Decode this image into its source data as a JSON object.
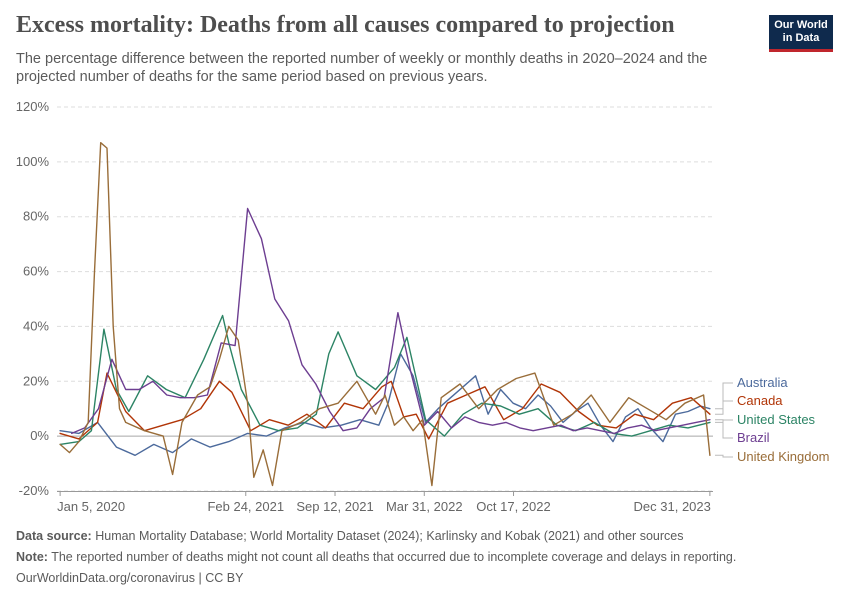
{
  "header": {
    "title": "Excess mortality: Deaths from all causes compared to projection",
    "subtitle": "The percentage difference between the reported number of weekly or monthly deaths in 2020–2024 and the projected number of deaths for the same period based on previous years.",
    "logo_line1": "Our World",
    "logo_line2": "in Data"
  },
  "footer": {
    "source_label": "Data source:",
    "source_text": "Human Mortality Database; World Mortality Dataset (2024); Karlinsky and Kobak (2021) and other sources",
    "note_label": "Note:",
    "note_text": "The reported number of deaths might not count all deaths that occurred due to incomplete coverage and delays in reporting.",
    "credit": "OurWorldinData.org/coronavirus | CC BY"
  },
  "colors": {
    "Australia": "#4c6a9c",
    "Canada": "#b13507",
    "United States": "#2c8465",
    "Brazil": "#6d3e91",
    "United Kingdom": "#996d39"
  },
  "chart_data": {
    "type": "line",
    "title": "Excess mortality: Deaths from all causes compared to projection",
    "ylabel": "",
    "xlabel": "",
    "ylim": [
      -20,
      120
    ],
    "yticks": [
      -20,
      0,
      20,
      40,
      60,
      80,
      100,
      120
    ],
    "ytick_labels": [
      "-20%",
      "0%",
      "20%",
      "40%",
      "60%",
      "80%",
      "100%",
      "120%"
    ],
    "xlim": [
      "2019-12-29",
      "2024-01-07"
    ],
    "xticks": [
      "2020-01-05",
      "2021-02-24",
      "2021-09-12",
      "2022-03-31",
      "2022-10-17",
      "2023-12-31"
    ],
    "xtick_labels": [
      "Jan 5, 2020",
      "Feb 24, 2021",
      "Sep 12, 2021",
      "Mar 31, 2022",
      "Oct 17, 2022",
      "Dec 31, 2023"
    ],
    "grid": "horizontal dashed",
    "legend": "right, at line ends",
    "series": [
      {
        "name": "Australia",
        "x": [
          "2020-01-05",
          "2020-02-16",
          "2020-03-29",
          "2020-05-10",
          "2020-06-21",
          "2020-08-02",
          "2020-09-13",
          "2020-10-25",
          "2020-12-06",
          "2021-01-17",
          "2021-02-28",
          "2021-04-11",
          "2021-05-23",
          "2021-07-04",
          "2021-08-15",
          "2021-09-26",
          "2021-11-07",
          "2021-12-19",
          "2022-01-09",
          "2022-02-06",
          "2022-03-06",
          "2022-04-03",
          "2022-05-01",
          "2022-05-29",
          "2022-06-26",
          "2022-07-24",
          "2022-08-21",
          "2022-09-18",
          "2022-10-16",
          "2022-11-13",
          "2022-12-11",
          "2023-01-08",
          "2023-02-05",
          "2023-03-05",
          "2023-04-02",
          "2023-04-30",
          "2023-05-28",
          "2023-06-25",
          "2023-07-23",
          "2023-08-20",
          "2023-09-17",
          "2023-10-15",
          "2023-11-12",
          "2023-12-10",
          "2023-12-31"
        ],
        "values": [
          2,
          1,
          5,
          -4,
          -7,
          -3,
          -6,
          -1,
          -4,
          -2,
          1,
          0,
          3,
          5,
          3,
          4,
          6,
          4,
          12,
          30,
          22,
          5,
          10,
          14,
          18,
          22,
          8,
          17,
          12,
          10,
          15,
          11,
          5,
          9,
          12,
          4,
          -2,
          7,
          10,
          3,
          -2,
          8,
          9,
          11,
          10
        ]
      },
      {
        "name": "Canada",
        "x": [
          "2020-01-05",
          "2020-02-16",
          "2020-03-29",
          "2020-04-19",
          "2020-05-31",
          "2020-07-12",
          "2020-08-23",
          "2020-10-04",
          "2020-11-15",
          "2020-12-27",
          "2021-01-24",
          "2021-03-07",
          "2021-04-18",
          "2021-05-30",
          "2021-07-11",
          "2021-08-22",
          "2021-10-03",
          "2021-11-14",
          "2021-12-26",
          "2022-01-16",
          "2022-02-13",
          "2022-03-13",
          "2022-04-10",
          "2022-05-22",
          "2022-07-03",
          "2022-08-14",
          "2022-09-25",
          "2022-11-06",
          "2022-12-18",
          "2023-01-29",
          "2023-03-12",
          "2023-04-23",
          "2023-06-04",
          "2023-07-16",
          "2023-08-27",
          "2023-10-08",
          "2023-11-19",
          "2023-12-31"
        ],
        "values": [
          1,
          -1,
          5,
          23,
          9,
          2,
          4,
          6,
          10,
          20,
          16,
          2,
          6,
          4,
          8,
          3,
          12,
          10,
          18,
          20,
          7,
          8,
          -1,
          12,
          15,
          18,
          6,
          10,
          19,
          16,
          9,
          4,
          3,
          8,
          6,
          12,
          14,
          8
        ]
      },
      {
        "name": "United States",
        "x": [
          "2020-01-05",
          "2020-02-16",
          "2020-03-15",
          "2020-04-12",
          "2020-05-10",
          "2020-06-07",
          "2020-07-19",
          "2020-08-30",
          "2020-10-11",
          "2020-11-22",
          "2021-01-03",
          "2021-01-17",
          "2021-02-14",
          "2021-03-28",
          "2021-05-09",
          "2021-06-20",
          "2021-08-01",
          "2021-08-29",
          "2021-09-19",
          "2021-10-31",
          "2021-12-12",
          "2022-01-23",
          "2022-02-20",
          "2022-04-03",
          "2022-05-15",
          "2022-06-26",
          "2022-08-07",
          "2022-09-18",
          "2022-10-30",
          "2022-12-11",
          "2023-01-22",
          "2023-03-05",
          "2023-04-16",
          "2023-05-28",
          "2023-07-09",
          "2023-08-20",
          "2023-10-01",
          "2023-11-12",
          "2023-12-31"
        ],
        "values": [
          -3,
          -2,
          2,
          39,
          17,
          9,
          22,
          17,
          14,
          28,
          44,
          34,
          17,
          4,
          2,
          3,
          8,
          30,
          38,
          22,
          17,
          25,
          36,
          6,
          0,
          8,
          12,
          11,
          8,
          10,
          4,
          2,
          5,
          1,
          0,
          2,
          4,
          3,
          5
        ]
      },
      {
        "name": "Brazil",
        "x": [
          "2020-01-31",
          "2020-02-29",
          "2020-03-31",
          "2020-04-30",
          "2020-05-31",
          "2020-06-30",
          "2020-07-31",
          "2020-08-31",
          "2020-09-30",
          "2020-10-31",
          "2020-11-30",
          "2020-12-31",
          "2021-01-31",
          "2021-02-28",
          "2021-03-31",
          "2021-04-30",
          "2021-05-31",
          "2021-06-30",
          "2021-07-31",
          "2021-08-31",
          "2021-09-30",
          "2021-10-31",
          "2021-11-30",
          "2021-12-31",
          "2022-01-31",
          "2022-02-28",
          "2022-03-31",
          "2022-04-30",
          "2022-05-31",
          "2022-06-30",
          "2022-07-31",
          "2022-08-31",
          "2022-09-30",
          "2022-10-31",
          "2022-11-30",
          "2022-12-31",
          "2023-01-31",
          "2023-02-28",
          "2023-03-31",
          "2023-04-30",
          "2023-05-31",
          "2023-06-30",
          "2023-07-31",
          "2023-08-31",
          "2023-09-30",
          "2023-10-31",
          "2023-11-30",
          "2023-12-31"
        ],
        "values": [
          1,
          3,
          10,
          28,
          17,
          17,
          20,
          15,
          14,
          14,
          15,
          34,
          33,
          83,
          72,
          50,
          42,
          26,
          19,
          9,
          2,
          3,
          10,
          14,
          45,
          24,
          4,
          9,
          3,
          7,
          5,
          4,
          5,
          3,
          2,
          3,
          4,
          2,
          3,
          2,
          1,
          3,
          4,
          2,
          3,
          4,
          5,
          6
        ]
      },
      {
        "name": "United Kingdom",
        "x": [
          "2020-01-05",
          "2020-01-26",
          "2020-02-16",
          "2020-03-08",
          "2020-03-22",
          "2020-04-05",
          "2020-04-19",
          "2020-05-03",
          "2020-05-17",
          "2020-05-31",
          "2020-07-12",
          "2020-08-23",
          "2020-09-13",
          "2020-10-04",
          "2020-11-08",
          "2020-12-06",
          "2020-12-27",
          "2021-01-17",
          "2021-02-07",
          "2021-02-28",
          "2021-03-14",
          "2021-04-04",
          "2021-04-25",
          "2021-05-16",
          "2021-06-27",
          "2021-08-08",
          "2021-09-19",
          "2021-10-31",
          "2021-12-12",
          "2022-01-02",
          "2022-01-23",
          "2022-02-13",
          "2022-03-06",
          "2022-03-27",
          "2022-04-17",
          "2022-05-08",
          "2022-06-19",
          "2022-07-31",
          "2022-09-11",
          "2022-10-23",
          "2022-12-04",
          "2023-01-15",
          "2023-02-26",
          "2023-04-09",
          "2023-05-21",
          "2023-07-02",
          "2023-08-13",
          "2023-09-24",
          "2023-11-05",
          "2023-12-17",
          "2023-12-31"
        ],
        "values": [
          -3,
          -6,
          -2,
          5,
          60,
          107,
          105,
          40,
          10,
          5,
          2,
          0,
          -14,
          5,
          15,
          18,
          28,
          40,
          35,
          12,
          -15,
          -5,
          -18,
          2,
          5,
          10,
          12,
          20,
          8,
          15,
          4,
          7,
          2,
          6,
          -18,
          14,
          19,
          10,
          17,
          21,
          23,
          4,
          8,
          15,
          5,
          14,
          10,
          6,
          12,
          15,
          -7
        ]
      }
    ]
  }
}
